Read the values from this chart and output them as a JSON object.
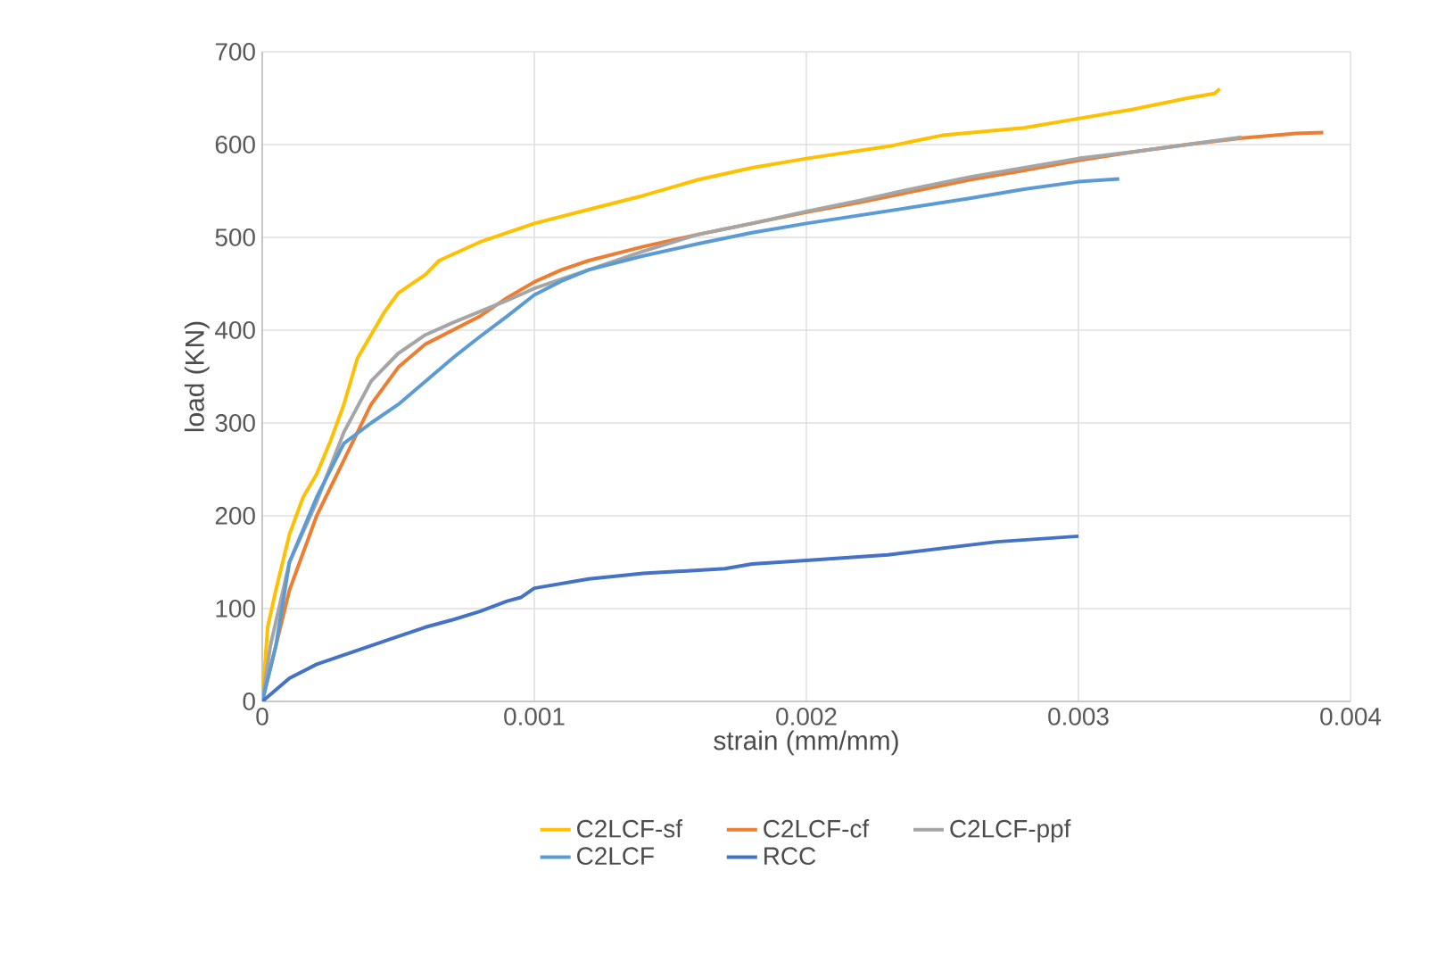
{
  "chart_data": {
    "type": "line",
    "xlabel": "strain (mm/mm)",
    "ylabel": "load (KN)",
    "xlim": [
      0,
      0.004
    ],
    "ylim": [
      0,
      700
    ],
    "xticks": [
      0,
      0.001,
      0.002,
      0.003,
      0.004
    ],
    "yticks": [
      0,
      100,
      200,
      300,
      400,
      500,
      600,
      700
    ],
    "grid": true,
    "legend": "bottom",
    "marker": "none",
    "line_style": "solid",
    "series": [
      {
        "name": "C2LCF-sf",
        "color": "#ffc000",
        "x": [
          0,
          2e-05,
          5e-05,
          0.0001,
          0.00015,
          0.0002,
          0.00025,
          0.0003,
          0.00035,
          0.0004,
          0.00045,
          0.0005,
          0.0006,
          0.00065,
          0.0008,
          0.001,
          0.0012,
          0.0014,
          0.0016,
          0.0018,
          0.002,
          0.0023,
          0.0025,
          0.0028,
          0.003,
          0.0032,
          0.0034,
          0.0035,
          0.00352
        ],
        "values": [
          0,
          80,
          120,
          180,
          220,
          245,
          280,
          320,
          370,
          395,
          420,
          440,
          460,
          475,
          495,
          515,
          530,
          545,
          562,
          575,
          585,
          598,
          610,
          618,
          628,
          638,
          650,
          655,
          660
        ]
      },
      {
        "name": "C2LCF-cf",
        "color": "#ed7d31",
        "x": [
          0,
          5e-05,
          0.0001,
          0.0002,
          0.0003,
          0.0004,
          0.0005,
          0.0006,
          0.0007,
          0.0008,
          0.0009,
          0.001,
          0.0011,
          0.0012,
          0.0014,
          0.0016,
          0.0018,
          0.002,
          0.0022,
          0.0024,
          0.0026,
          0.0028,
          0.003,
          0.0032,
          0.0034,
          0.0036,
          0.0038,
          0.0039
        ],
        "values": [
          0,
          60,
          120,
          200,
          260,
          320,
          360,
          385,
          400,
          415,
          435,
          452,
          465,
          475,
          490,
          503,
          515,
          527,
          538,
          550,
          562,
          572,
          583,
          592,
          600,
          607,
          612,
          613
        ]
      },
      {
        "name": "C2LCF-ppf",
        "color": "#a5a5a5",
        "x": [
          0,
          3e-05,
          0.0001,
          0.0002,
          0.0003,
          0.0004,
          0.0005,
          0.0006,
          0.0007,
          0.0008,
          0.0009,
          0.001,
          0.0012,
          0.0014,
          0.0016,
          0.0018,
          0.002,
          0.0022,
          0.0024,
          0.0026,
          0.0028,
          0.003,
          0.0032,
          0.0034,
          0.0036
        ],
        "values": [
          0,
          60,
          150,
          215,
          290,
          345,
          375,
          395,
          408,
          420,
          432,
          445,
          465,
          485,
          503,
          515,
          528,
          540,
          553,
          565,
          575,
          585,
          592,
          600,
          608
        ]
      },
      {
        "name": "C2LCF",
        "color": "#5b9bd5",
        "x": [
          0,
          5e-05,
          0.0001,
          0.0002,
          0.0003,
          0.0004,
          0.0005,
          0.0006,
          0.0007,
          0.0008,
          0.0009,
          0.001,
          0.0011,
          0.0012,
          0.0014,
          0.0016,
          0.0018,
          0.002,
          0.0022,
          0.0024,
          0.0026,
          0.0028,
          0.003,
          0.00315
        ],
        "values": [
          0,
          60,
          150,
          220,
          278,
          300,
          320,
          345,
          370,
          393,
          415,
          438,
          453,
          465,
          480,
          493,
          505,
          515,
          524,
          533,
          542,
          552,
          560,
          563
        ]
      },
      {
        "name": "RCC",
        "color": "#4472c4",
        "x": [
          0,
          0.0001,
          0.0002,
          0.0003,
          0.0004,
          0.0005,
          0.0006,
          0.0007,
          0.0008,
          0.0009,
          0.00095,
          0.001,
          0.0012,
          0.0014,
          0.0017,
          0.0018,
          0.002,
          0.0023,
          0.0025,
          0.0027,
          0.003
        ],
        "values": [
          0,
          25,
          40,
          50,
          60,
          70,
          80,
          88,
          97,
          108,
          112,
          122,
          132,
          138,
          143,
          148,
          152,
          158,
          165,
          172,
          178
        ]
      }
    ]
  }
}
